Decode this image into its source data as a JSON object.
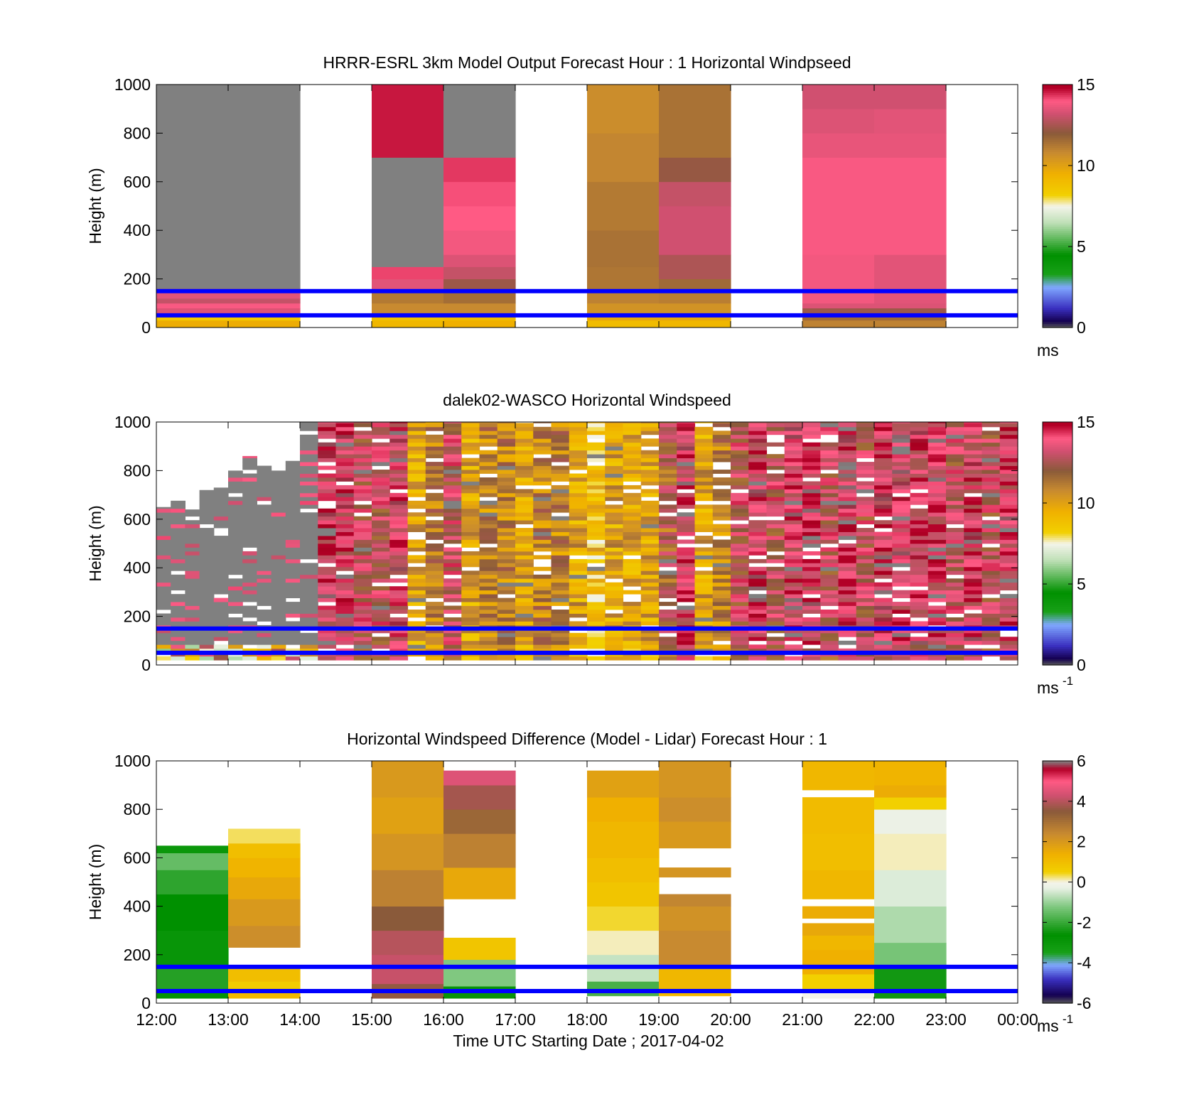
{
  "chart_data": [
    {
      "type": "heatmap",
      "title": "HRRR-ESRL 3km Model Output   Forecast Hour : 1 Horizontal Windpseed",
      "ylabel": "Height (m)",
      "xlabel": "",
      "ylim": [
        0,
        1000
      ],
      "yticks": [
        "0",
        "200",
        "400",
        "600",
        "800",
        "1000"
      ],
      "xticks": [],
      "colorbar": {
        "ticks": [
          "0",
          "5",
          "10",
          "15"
        ],
        "range": [
          0,
          15
        ],
        "unit": "ms",
        "unit_sup": ""
      },
      "ref_lines_m": [
        150,
        50
      ],
      "columns": [
        {
          "start": 0,
          "end": 1,
          "segs": [
            [
              0,
              30,
              9.6
            ],
            [
              30,
              50,
              8.5
            ],
            [
              50,
              80,
              13.4
            ],
            [
              80,
              100,
              13.9
            ],
            [
              100,
              120,
              13.0
            ],
            [
              120,
              160,
              13.5
            ],
            [
              160,
              1000,
              15.5
            ]
          ]
        },
        {
          "start": 1,
          "end": 2,
          "segs": [
            [
              0,
              30,
              9.6
            ],
            [
              30,
              50,
              8.5
            ],
            [
              50,
              80,
              13.4
            ],
            [
              80,
              100,
              13.9
            ],
            [
              100,
              120,
              13.0
            ],
            [
              120,
              160,
              13.5
            ],
            [
              160,
              1000,
              15.5
            ]
          ]
        },
        {
          "start": 3,
          "end": 4,
          "segs": [
            [
              0,
              30,
              9.2
            ],
            [
              30,
              50,
              8.8
            ],
            [
              50,
              100,
              10.8
            ],
            [
              100,
              150,
              11.2
            ],
            [
              150,
              200,
              13.5
            ],
            [
              200,
              250,
              14.2
            ],
            [
              250,
              700,
              15.5
            ],
            [
              700,
              1000,
              14.6
            ]
          ]
        },
        {
          "start": 4,
          "end": 5,
          "segs": [
            [
              0,
              30,
              9.5
            ],
            [
              30,
              50,
              9.0
            ],
            [
              50,
              100,
              10.8
            ],
            [
              100,
              150,
              11.5
            ],
            [
              150,
              200,
              12.3
            ],
            [
              200,
              250,
              13.0
            ],
            [
              250,
              300,
              13.4
            ],
            [
              300,
              400,
              13.8
            ],
            [
              400,
              500,
              14.0
            ],
            [
              500,
              600,
              14.1
            ],
            [
              600,
              700,
              14.3
            ],
            [
              700,
              1000,
              15.5
            ]
          ]
        },
        {
          "start": 6,
          "end": 7,
          "segs": [
            [
              0,
              30,
              9.0
            ],
            [
              30,
              50,
              9.8
            ],
            [
              50,
              100,
              10.5
            ],
            [
              100,
              150,
              11.0
            ],
            [
              150,
              250,
              11.3
            ],
            [
              250,
              400,
              11.4
            ],
            [
              400,
              600,
              11.2
            ],
            [
              600,
              800,
              10.9
            ],
            [
              800,
              1000,
              10.7
            ]
          ]
        },
        {
          "start": 7,
          "end": 8,
          "segs": [
            [
              0,
              30,
              9.2
            ],
            [
              30,
              50,
              9.8
            ],
            [
              50,
              100,
              10.5
            ],
            [
              100,
              150,
              11.1
            ],
            [
              150,
              200,
              11.6
            ],
            [
              200,
              300,
              12.6
            ],
            [
              300,
              500,
              13.2
            ],
            [
              500,
              600,
              13.0
            ],
            [
              600,
              700,
              12.2
            ],
            [
              700,
              1000,
              11.4
            ]
          ]
        },
        {
          "start": 9,
          "end": 10,
          "segs": [
            [
              0,
              30,
              11.0
            ],
            [
              30,
              50,
              11.6
            ],
            [
              50,
              80,
              12.3
            ],
            [
              80,
              100,
              13.4
            ],
            [
              100,
              300,
              13.8
            ],
            [
              300,
              700,
              13.9
            ],
            [
              700,
              800,
              13.6
            ],
            [
              800,
              900,
              13.4
            ],
            [
              900,
              1000,
              13.2
            ]
          ]
        },
        {
          "start": 10,
          "end": 11,
          "segs": [
            [
              0,
              30,
              11.0
            ],
            [
              30,
              50,
              11.6
            ],
            [
              50,
              80,
              12.3
            ],
            [
              80,
              100,
              13.4
            ],
            [
              100,
              300,
              13.5
            ],
            [
              300,
              700,
              13.9
            ],
            [
              700,
              800,
              13.6
            ],
            [
              800,
              900,
              13.5
            ],
            [
              900,
              1000,
              13.2
            ]
          ]
        }
      ]
    },
    {
      "type": "heatmap",
      "title": "dalek02-WASCO  Horizontal Windspeed",
      "ylabel": "Height (m)",
      "xlabel": "",
      "ylim": [
        0,
        1000
      ],
      "yticks": [
        "0",
        "200",
        "400",
        "600",
        "800",
        "1000"
      ],
      "xticks": [],
      "colorbar": {
        "ticks": [
          "0",
          "5",
          "10",
          "15"
        ],
        "range": [
          0,
          15
        ],
        "unit": "ms",
        "unit_sup": "-1"
      },
      "ref_lines_m": [
        150,
        50
      ],
      "profiles": [
        [
          0,
          200,
          650,
          1
        ],
        [
          200,
          400,
          690,
          1
        ],
        [
          400,
          600,
          640,
          1
        ],
        [
          600,
          800,
          720,
          1
        ],
        [
          800,
          1000,
          730,
          2
        ],
        [
          1000,
          1200,
          800,
          2
        ],
        [
          1200,
          1400,
          860,
          2
        ],
        [
          1400,
          1600,
          820,
          2
        ],
        [
          1600,
          1800,
          800,
          3
        ],
        [
          1800,
          2000,
          840,
          3
        ],
        [
          2000,
          2250,
          1000,
          4
        ],
        [
          2250,
          2500,
          1000,
          14
        ],
        [
          2500,
          2750,
          1000,
          14
        ],
        [
          2750,
          3000,
          1000,
          13
        ],
        [
          3000,
          3250,
          1000,
          13
        ],
        [
          3250,
          3500,
          1000,
          14
        ],
        [
          3500,
          3750,
          1000,
          10
        ],
        [
          3750,
          4000,
          1000,
          11
        ],
        [
          4000,
          4250,
          1000,
          13
        ],
        [
          4250,
          4500,
          1000,
          10
        ],
        [
          4500,
          4750,
          1000,
          11
        ],
        [
          4750,
          5000,
          1000,
          11
        ],
        [
          5000,
          5250,
          1000,
          10
        ],
        [
          5250,
          5500,
          1000,
          11
        ],
        [
          5500,
          5750,
          1000,
          11
        ],
        [
          5750,
          6000,
          1000,
          10
        ],
        [
          6000,
          6250,
          1000,
          9
        ],
        [
          6250,
          6500,
          1000,
          10
        ],
        [
          6500,
          6750,
          1000,
          10
        ],
        [
          6750,
          7000,
          1000,
          10
        ],
        [
          7000,
          7250,
          1000,
          12
        ],
        [
          7250,
          7500,
          1000,
          14
        ],
        [
          7500,
          7750,
          1000,
          10
        ],
        [
          7750,
          8000,
          1000,
          11
        ],
        [
          8000,
          8250,
          1000,
          13
        ],
        [
          8250,
          8500,
          1000,
          14
        ],
        [
          8500,
          8750,
          1000,
          13
        ],
        [
          8750,
          9000,
          1000,
          14
        ],
        [
          9000,
          9250,
          1000,
          14
        ],
        [
          9250,
          9500,
          1000,
          13
        ],
        [
          9500,
          9750,
          1000,
          14
        ],
        [
          9750,
          10000,
          1000,
          13
        ],
        [
          10000,
          10250,
          1000,
          14
        ],
        [
          10250,
          10500,
          1000,
          14
        ],
        [
          10500,
          10750,
          1000,
          14
        ],
        [
          10750,
          11000,
          1000,
          14
        ],
        [
          11000,
          11250,
          1000,
          13
        ],
        [
          11250,
          11500,
          1000,
          14
        ],
        [
          11500,
          11750,
          1000,
          13
        ],
        [
          11750,
          12000,
          1000,
          14
        ]
      ]
    },
    {
      "type": "heatmap",
      "title": "Horizontal Windspeed Difference (Model - Lidar) Forecast Hour : 1",
      "ylabel": "Height (m)",
      "xlabel": "Time UTC  Starting Date ; 2017-04-02",
      "ylim": [
        0,
        1000
      ],
      "yticks": [
        "0",
        "200",
        "400",
        "600",
        "800",
        "1000"
      ],
      "xticks": [
        "12:00",
        "13:00",
        "14:00",
        "15:00",
        "16:00",
        "17:00",
        "18:00",
        "19:00",
        "20:00",
        "21:00",
        "22:00",
        "23:00",
        "00:00"
      ],
      "colorbar": {
        "ticks": [
          "-6",
          "-4",
          "-2",
          "0",
          "2",
          "4",
          "6"
        ],
        "range": [
          -6,
          6
        ],
        "unit": "ms",
        "unit_sup": "-1"
      },
      "ref_lines_m": [
        150,
        50
      ],
      "columns": [
        {
          "start": 0,
          "end": 1,
          "segs": [
            [
              20,
              60,
              -2.8
            ],
            [
              60,
              150,
              -2.2
            ],
            [
              150,
              300,
              -2.9
            ],
            [
              300,
              450,
              -2.6
            ],
            [
              450,
              550,
              -2.1
            ],
            [
              550,
              620,
              -1.5
            ],
            [
              620,
              650,
              -3.0
            ]
          ]
        },
        {
          "start": 1,
          "end": 2,
          "segs": [
            [
              20,
              50,
              1.2
            ],
            [
              50,
              90,
              0.6
            ],
            [
              90,
              150,
              1.0
            ],
            [
              230,
              320,
              2.3
            ],
            [
              320,
              430,
              2.0
            ],
            [
              430,
              520,
              1.6
            ],
            [
              520,
              600,
              1.3
            ],
            [
              600,
              660,
              1.0
            ],
            [
              660,
              720,
              0.3
            ]
          ]
        },
        {
          "start": 3,
          "end": 4,
          "segs": [
            [
              20,
              80,
              3.6
            ],
            [
              80,
              200,
              4.2
            ],
            [
              200,
              300,
              4.0
            ],
            [
              300,
              400,
              3.5
            ],
            [
              400,
              550,
              2.6
            ],
            [
              550,
              700,
              2.1
            ],
            [
              700,
              850,
              1.8
            ],
            [
              850,
              1000,
              2.0
            ]
          ]
        },
        {
          "start": 4,
          "end": 5,
          "segs": [
            [
              20,
              70,
              -2.5
            ],
            [
              70,
              180,
              -1.2
            ],
            [
              180,
              270,
              0.8
            ],
            [
              430,
              560,
              1.6
            ],
            [
              560,
              700,
              2.6
            ],
            [
              700,
              800,
              3.2
            ],
            [
              800,
              900,
              3.8
            ],
            [
              900,
              960,
              4.5
            ]
          ]
        },
        {
          "start": 6,
          "end": 7,
          "segs": [
            [
              30,
              90,
              -1.8
            ],
            [
              90,
              200,
              -0.6
            ],
            [
              200,
              300,
              0.1
            ],
            [
              300,
              400,
              0.4
            ],
            [
              400,
              500,
              0.8
            ],
            [
              500,
              600,
              1.0
            ],
            [
              600,
              750,
              1.2
            ],
            [
              750,
              850,
              1.4
            ],
            [
              850,
              960,
              1.8
            ]
          ]
        },
        {
          "start": 7,
          "end": 8,
          "segs": [
            [
              30,
              150,
              1.2
            ],
            [
              150,
              300,
              2.4
            ],
            [
              300,
              400,
              2.2
            ],
            [
              400,
              450,
              2.5
            ],
            [
              520,
              560,
              2.1
            ],
            [
              640,
              750,
              2.0
            ],
            [
              750,
              850,
              2.3
            ],
            [
              850,
              1000,
              2.1
            ]
          ]
        },
        {
          "start": 9,
          "end": 10,
          "segs": [
            [
              20,
              60,
              0.0
            ],
            [
              60,
              120,
              0.5
            ],
            [
              120,
              220,
              1.4
            ],
            [
              220,
              280,
              1.2
            ],
            [
              280,
              330,
              1.6
            ],
            [
              350,
              400,
              1.5
            ],
            [
              430,
              550,
              1.2
            ],
            [
              550,
              700,
              1.0
            ],
            [
              700,
              850,
              1.1
            ],
            [
              880,
              1000,
              1.2
            ]
          ]
        },
        {
          "start": 10,
          "end": 11,
          "segs": [
            [
              20,
              150,
              -2.4
            ],
            [
              150,
              250,
              -1.3
            ],
            [
              250,
              400,
              -0.8
            ],
            [
              400,
              550,
              -0.4
            ],
            [
              550,
              700,
              0.1
            ],
            [
              700,
              800,
              -0.2
            ],
            [
              800,
              850,
              0.5
            ],
            [
              850,
              900,
              1.5
            ],
            [
              900,
              1000,
              1.3
            ]
          ]
        }
      ]
    }
  ]
}
